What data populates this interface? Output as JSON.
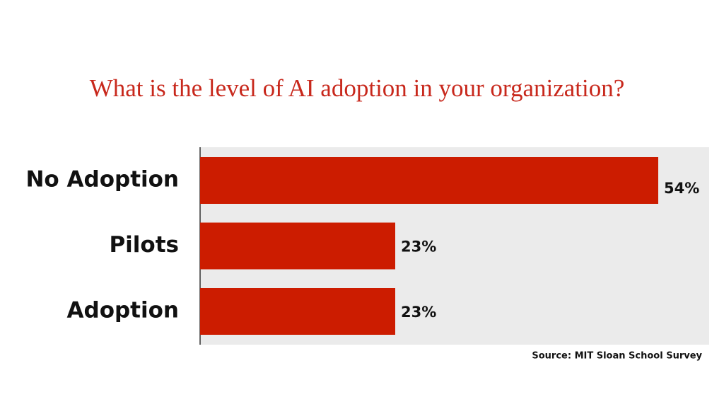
{
  "chart_data": {
    "type": "bar",
    "orientation": "horizontal",
    "title": "What is the level of AI adoption in your organization?",
    "categories": [
      "No Adoption",
      "Pilots",
      "Adoption"
    ],
    "values": [
      54,
      23,
      23
    ],
    "value_labels": [
      "54%",
      "23%",
      "23%"
    ],
    "color": "#cc1c00",
    "source": "Source: MIT Sloan School Survey"
  }
}
